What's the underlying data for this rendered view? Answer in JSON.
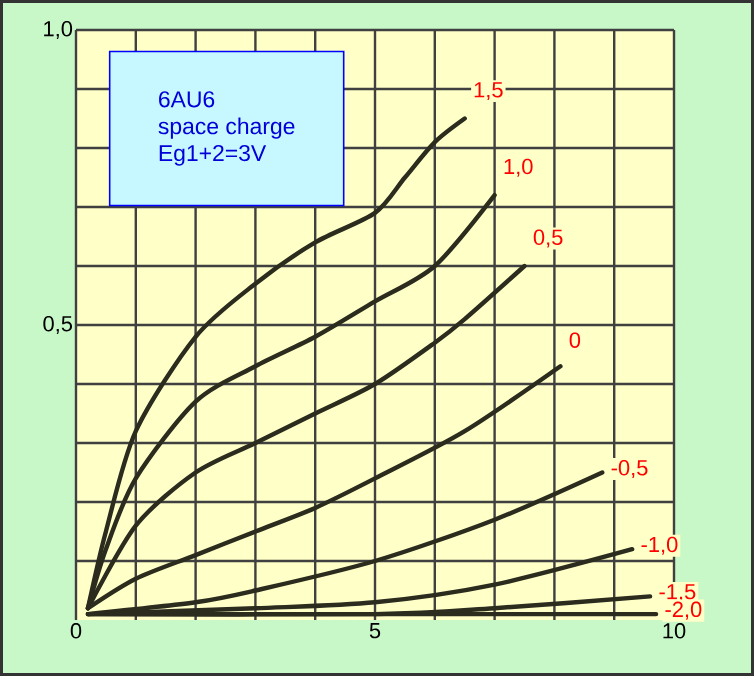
{
  "chart_data": {
    "type": "line",
    "annotations": [
      "6AU6",
      "space charge",
      "Eg1+2=3V"
    ],
    "xlim": [
      0,
      10
    ],
    "ylim": [
      0,
      1
    ],
    "xticks": [
      0,
      {
        "value": 1,
        "label": null
      },
      {
        "value": 2,
        "label": null
      },
      {
        "value": 3,
        "label": null
      },
      {
        "value": 4,
        "label": null
      },
      5,
      {
        "value": 6,
        "label": null
      },
      {
        "value": 7,
        "label": null
      },
      {
        "value": 8,
        "label": null
      },
      {
        "value": 9,
        "label": null
      },
      10
    ],
    "yticks": [
      {
        "value": 0.1,
        "label": null
      },
      {
        "value": 0.2,
        "label": null
      },
      {
        "value": 0.3,
        "label": null
      },
      {
        "value": 0.4,
        "label": null
      },
      {
        "value": 0.5,
        "label": "0,5"
      },
      {
        "value": 0.6,
        "label": null
      },
      {
        "value": 0.7,
        "label": null
      },
      {
        "value": 0.8,
        "label": null
      },
      {
        "value": 0.9,
        "label": null
      },
      {
        "value": 1,
        "label": "1,0"
      }
    ],
    "grid": true,
    "marker": "none",
    "line_style": "solid",
    "series": [
      {
        "name": "1,5",
        "color": "#2b2b1e",
        "x": [
          0.2,
          0.5,
          1,
          2,
          3,
          4,
          5,
          5.5,
          6,
          6.5
        ],
        "values": [
          0.02,
          0.15,
          0.32,
          0.48,
          0.57,
          0.64,
          0.69,
          0.75,
          0.81,
          0.85
        ]
      },
      {
        "name": "1,0",
        "color": "#2b2b1e",
        "x": [
          0.2,
          0.5,
          1,
          2,
          3,
          4,
          5,
          6,
          7
        ],
        "values": [
          0.02,
          0.12,
          0.24,
          0.37,
          0.43,
          0.48,
          0.54,
          0.6,
          0.72
        ]
      },
      {
        "name": "0,5",
        "color": "#2b2b1e",
        "x": [
          0.2,
          1,
          2,
          3,
          4,
          5,
          6,
          6.5,
          7.5
        ],
        "values": [
          0.02,
          0.16,
          0.25,
          0.3,
          0.35,
          0.4,
          0.47,
          0.51,
          0.6
        ]
      },
      {
        "name": "0",
        "color": "#2b2b1e",
        "x": [
          0.2,
          1,
          2,
          3,
          4,
          5,
          6.5,
          8.1
        ],
        "values": [
          0.02,
          0.07,
          0.11,
          0.15,
          0.19,
          0.24,
          0.32,
          0.43
        ]
      },
      {
        "name": "-0,5",
        "color": "#2b2b1e",
        "x": [
          0.2,
          2,
          3,
          5,
          7,
          8.8
        ],
        "values": [
          0.01,
          0.03,
          0.05,
          0.1,
          0.17,
          0.25
        ]
      },
      {
        "name": "-1,0",
        "color": "#2b2b1e",
        "x": [
          0.2,
          3,
          5,
          7,
          9.3
        ],
        "values": [
          0.01,
          0.02,
          0.03,
          0.06,
          0.12
        ]
      },
      {
        "name": "-1,5",
        "color": "#2b2b1e",
        "x": [
          0.2,
          5,
          7,
          9.6
        ],
        "values": [
          0.01,
          0.01,
          0.02,
          0.04
        ]
      },
      {
        "name": "-2,0",
        "color": "#2b2b1e",
        "x": [
          0.2,
          5,
          9.7
        ],
        "values": [
          0.01,
          0.01,
          0.01
        ]
      }
    ]
  }
}
